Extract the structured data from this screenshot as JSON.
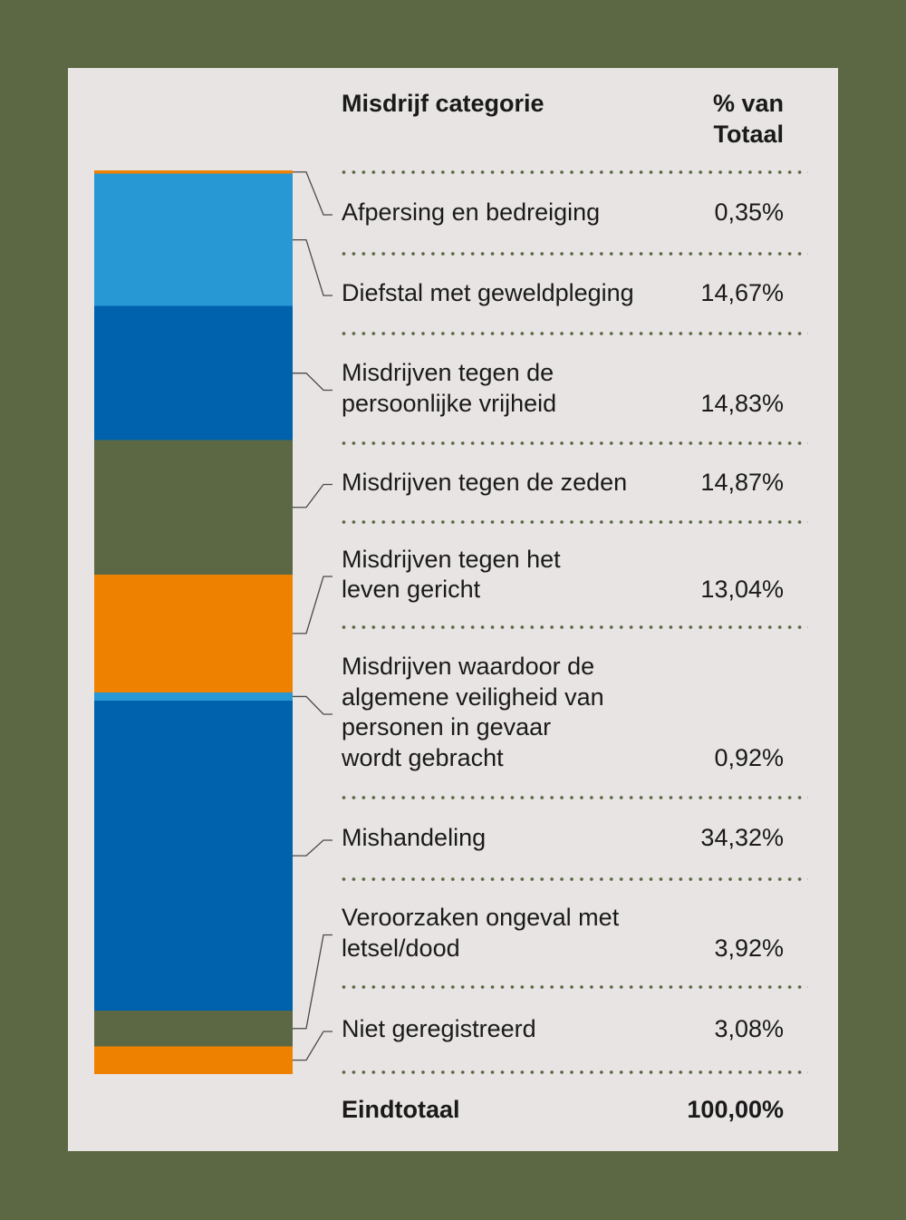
{
  "table": {
    "header": {
      "category": "Misdrijf categorie",
      "percent": "% van\nTotaal"
    },
    "total": {
      "label": "Eindtotaal",
      "value": "100,00%"
    }
  },
  "chart_data": {
    "type": "bar",
    "stacked": true,
    "categories": [
      "Afpersing en bedreiging",
      "Diefstal met geweldpleging",
      "Misdrijven tegen de\npersoonlijke vrijheid",
      "Misdrijven tegen de zeden",
      "Misdrijven tegen het\nleven gericht",
      "Misdrijven waardoor de\nalgemene veiligheid van\npersonen in gevaar\nwordt gebracht",
      "Mishandeling",
      "Veroorzaken ongeval met\nletsel/dood",
      "Niet geregistreerd"
    ],
    "values": [
      0.35,
      14.67,
      14.83,
      14.87,
      13.04,
      0.92,
      34.32,
      3.92,
      3.08
    ],
    "value_labels": [
      "0,35%",
      "14,67%",
      "14,83%",
      "14,87%",
      "13,04%",
      "0,92%",
      "34,32%",
      "3,92%",
      "3,08%"
    ],
    "colors": [
      "#ee8100",
      "#2898d5",
      "#0062ac",
      "#5c6843",
      "#ee8100",
      "#2898d5",
      "#0062ac",
      "#5c6843",
      "#ee8100"
    ],
    "ylim": [
      0,
      100
    ]
  },
  "colors": {
    "page_background": "#5c6843",
    "panel": "#e8e4e3",
    "text": "#1a1a1a",
    "divider": "#5c6843",
    "connector": "#4a4a4a"
  }
}
